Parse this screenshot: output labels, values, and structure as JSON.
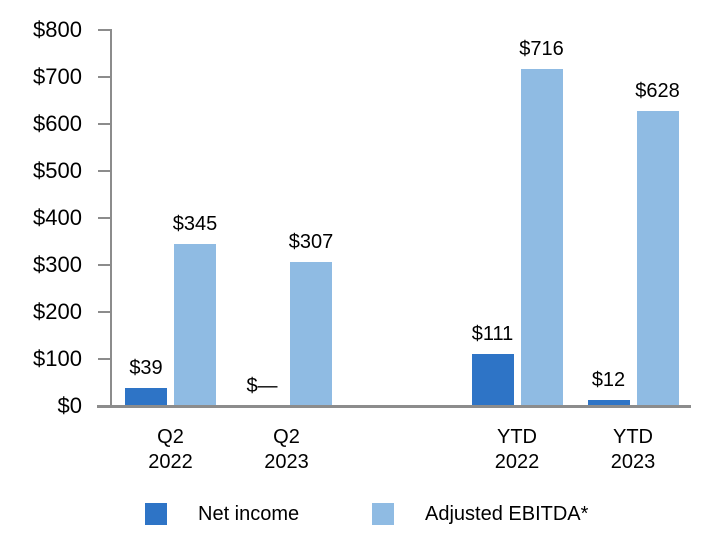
{
  "chart_data": {
    "type": "bar",
    "title": "",
    "ylim": [
      0,
      800
    ],
    "y_tick_step": 100,
    "y_ticks": [
      {
        "value": 800,
        "label": "$800"
      },
      {
        "value": 700,
        "label": "$700"
      },
      {
        "value": 600,
        "label": "$600"
      },
      {
        "value": 500,
        "label": "$500"
      },
      {
        "value": 400,
        "label": "$400"
      },
      {
        "value": 300,
        "label": "$300"
      },
      {
        "value": 200,
        "label": "$200"
      },
      {
        "value": 100,
        "label": "$100"
      },
      {
        "value": 0,
        "label": "$0"
      }
    ],
    "categories": [
      {
        "label": "Q2 2022",
        "lines": [
          "Q2",
          "2022"
        ]
      },
      {
        "label": "Q2 2023",
        "lines": [
          "Q2",
          "2023"
        ]
      },
      {
        "label": "YTD 2022",
        "lines": [
          "YTD",
          "2022"
        ]
      },
      {
        "label": "YTD 2023",
        "lines": [
          "YTD",
          "2023"
        ]
      }
    ],
    "series": [
      {
        "name": "Net income",
        "color": "#2E74C6",
        "values": [
          39,
          0,
          111,
          12
        ],
        "value_labels": [
          "$39",
          "$—",
          "$111",
          "$12"
        ]
      },
      {
        "name": "Adjusted EBITDA*",
        "color": "#8FBBE3",
        "values": [
          345,
          307,
          716,
          628
        ],
        "value_labels": [
          "$345",
          "$307",
          "$716",
          "$628"
        ]
      }
    ],
    "grid": false,
    "legend_position": "bottom",
    "axis_color": "#8C8C8C"
  },
  "legend": {
    "items": [
      {
        "label": "Net income",
        "color": "#2E74C6"
      },
      {
        "label": "Adjusted EBITDA*",
        "color": "#8FBBE3"
      }
    ]
  }
}
